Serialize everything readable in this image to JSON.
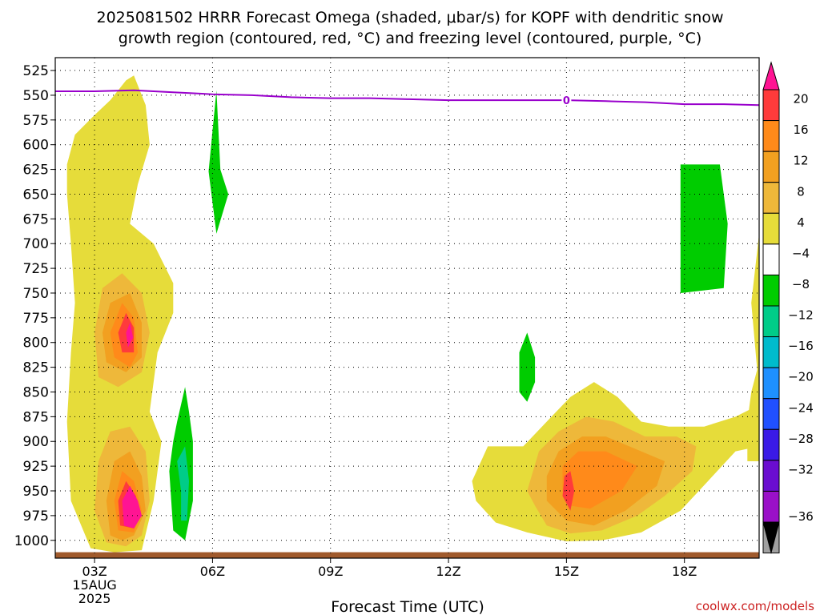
{
  "chart_data": {
    "type": "heatmap",
    "title_line1": "2025081502 HRRR Forecast Omega (shaded, μbar/s) for KOPF with dendritic snow",
    "title_line2": "growth region (contoured, red, °C) and freezing level (contoured, purple, °C)",
    "xlabel": "Forecast Time (UTC)",
    "ylabel": "",
    "watermark": "coolwx.com/models",
    "x_ticks": [
      "03Z",
      "06Z",
      "09Z",
      "12Z",
      "15Z",
      "18Z"
    ],
    "x_tick_hours": [
      3,
      6,
      9,
      12,
      15,
      18
    ],
    "x_date_line1": "15AUG",
    "x_date_line2": "2025",
    "xlim_hours": [
      2,
      19.9
    ],
    "y_ticks": [
      525,
      550,
      575,
      600,
      625,
      650,
      675,
      700,
      725,
      750,
      775,
      800,
      825,
      850,
      875,
      900,
      925,
      950,
      975,
      1000
    ],
    "ylim": [
      1018,
      512
    ],
    "grid": true,
    "colorbar": {
      "labels": [
        "20",
        "16",
        "12",
        "8",
        "4",
        "−4",
        "−8",
        "−12",
        "−16",
        "−20",
        "−24",
        "−28",
        "−32",
        "−36"
      ],
      "colors": [
        "#ff1493",
        "#ff3b3b",
        "#ff8a1a",
        "#f2a020",
        "#eeb83a",
        "#e6dc3a",
        "#ffffff",
        "#00cc00",
        "#00cc88",
        "#00bbcc",
        "#1e90ff",
        "#2050ff",
        "#3a1ae6",
        "#6a0dd0",
        "#9a10c8",
        "#a0a0a0"
      ]
    },
    "omega_colors": {
      "4": "#e6dc3a",
      "8": "#eeb83a",
      "12": "#f2a020",
      "16": "#ff8a1a",
      "20": "#ff3b3b",
      "24": "#ff1493",
      "-4": "#00cc00",
      "-8": "#00cc88"
    },
    "freezing_level": {
      "color": "#9900cc",
      "label": "0",
      "label_hour": 15,
      "hours": [
        2,
        3,
        4,
        5,
        6,
        7,
        8,
        9,
        10,
        11,
        12,
        13,
        14,
        15,
        16,
        17,
        18,
        19,
        19.9
      ],
      "pressure": [
        546,
        546,
        545,
        547,
        549,
        550,
        552,
        553,
        553,
        554,
        555,
        555,
        555,
        555,
        556,
        557,
        559,
        559,
        560
      ]
    },
    "ground": {
      "color": "#a05a2c",
      "pressure_top": 1012
    },
    "regions": [
      {
        "level": 4,
        "points": [
          [
            2.9,
            1008
          ],
          [
            2.4,
            960
          ],
          [
            2.3,
            880
          ],
          [
            2.4,
            810
          ],
          [
            2.5,
            760
          ],
          [
            2.4,
            700
          ],
          [
            2.3,
            650
          ],
          [
            2.3,
            620
          ],
          [
            2.5,
            590
          ],
          [
            3.0,
            570
          ],
          [
            3.4,
            555
          ],
          [
            3.8,
            535
          ],
          [
            4.0,
            530
          ],
          [
            4.3,
            560
          ],
          [
            4.4,
            600
          ],
          [
            4.1,
            640
          ],
          [
            3.9,
            680
          ],
          [
            4.5,
            700
          ],
          [
            5.0,
            740
          ],
          [
            5.0,
            770
          ],
          [
            4.6,
            810
          ],
          [
            4.5,
            840
          ],
          [
            4.4,
            870
          ],
          [
            4.7,
            900
          ],
          [
            4.5,
            960
          ],
          [
            4.2,
            1010
          ],
          [
            3.5,
            1012
          ]
        ]
      },
      {
        "level": 8,
        "points": [
          [
            3.1,
            835
          ],
          [
            3.0,
            790
          ],
          [
            3.2,
            745
          ],
          [
            3.7,
            730
          ],
          [
            4.2,
            750
          ],
          [
            4.4,
            790
          ],
          [
            4.2,
            830
          ],
          [
            3.6,
            845
          ]
        ]
      },
      {
        "level": 12,
        "points": [
          [
            3.3,
            820
          ],
          [
            3.2,
            790
          ],
          [
            3.4,
            760
          ],
          [
            3.9,
            750
          ],
          [
            4.2,
            780
          ],
          [
            4.2,
            815
          ],
          [
            3.8,
            830
          ]
        ]
      },
      {
        "level": 16,
        "points": [
          [
            3.5,
            815
          ],
          [
            3.4,
            790
          ],
          [
            3.7,
            760
          ],
          [
            4.0,
            775
          ],
          [
            4.1,
            810
          ],
          [
            3.9,
            825
          ]
        ]
      },
      {
        "level": 20,
        "points": [
          [
            3.7,
            810
          ],
          [
            3.6,
            790
          ],
          [
            3.8,
            770
          ],
          [
            4.0,
            785
          ],
          [
            4.0,
            810
          ]
        ]
      },
      {
        "level": 24,
        "points": [
          [
            3.85,
            805
          ],
          [
            3.8,
            790
          ],
          [
            3.9,
            780
          ],
          [
            3.98,
            795
          ]
        ]
      },
      {
        "level": 8,
        "points": [
          [
            3.3,
            1002
          ],
          [
            3.0,
            970
          ],
          [
            3.1,
            920
          ],
          [
            3.4,
            890
          ],
          [
            3.9,
            885
          ],
          [
            4.3,
            910
          ],
          [
            4.4,
            960
          ],
          [
            4.2,
            995
          ],
          [
            3.8,
            1006
          ]
        ]
      },
      {
        "level": 12,
        "points": [
          [
            3.4,
            995
          ],
          [
            3.3,
            960
          ],
          [
            3.5,
            920
          ],
          [
            3.9,
            910
          ],
          [
            4.2,
            935
          ],
          [
            4.3,
            970
          ],
          [
            4.0,
            995
          ],
          [
            3.7,
            1000
          ]
        ]
      },
      {
        "level": 16,
        "points": [
          [
            3.6,
            990
          ],
          [
            3.5,
            960
          ],
          [
            3.7,
            930
          ],
          [
            4.0,
            940
          ],
          [
            4.2,
            970
          ],
          [
            4.0,
            992
          ]
        ]
      },
      {
        "level": 20,
        "points": [
          [
            3.65,
            985
          ],
          [
            3.6,
            960
          ],
          [
            3.8,
            940
          ],
          [
            4.05,
            955
          ],
          [
            4.15,
            975
          ],
          [
            4.0,
            988
          ]
        ]
      },
      {
        "level": 24,
        "points": [
          [
            3.75,
            985
          ],
          [
            3.7,
            960
          ],
          [
            3.9,
            945
          ],
          [
            4.1,
            960
          ],
          [
            4.2,
            975
          ],
          [
            4.0,
            988
          ]
        ]
      },
      {
        "level": -4,
        "points": [
          [
            5.9,
            627
          ],
          [
            6.1,
            545
          ],
          [
            6.2,
            625
          ],
          [
            6.4,
            650
          ],
          [
            6.1,
            690
          ]
        ]
      },
      {
        "level": -4,
        "points": [
          [
            5.1,
            880
          ],
          [
            5.3,
            845
          ],
          [
            5.4,
            870
          ],
          [
            5.5,
            900
          ],
          [
            5.5,
            960
          ],
          [
            5.3,
            1000
          ],
          [
            5.0,
            990
          ],
          [
            4.9,
            930
          ],
          [
            5.0,
            900
          ]
        ]
      },
      {
        "level": -8,
        "points": [
          [
            5.2,
            950
          ],
          [
            5.1,
            920
          ],
          [
            5.3,
            905
          ],
          [
            5.4,
            940
          ],
          [
            5.35,
            980
          ],
          [
            5.2,
            980
          ]
        ]
      },
      {
        "level": -4,
        "points": [
          [
            13.8,
            850
          ],
          [
            13.8,
            810
          ],
          [
            14.0,
            790
          ],
          [
            14.2,
            815
          ],
          [
            14.2,
            840
          ],
          [
            14.0,
            860
          ]
        ]
      },
      {
        "level": -4,
        "points": [
          [
            17.9,
            655
          ],
          [
            17.9,
            620
          ],
          [
            18.9,
            620
          ],
          [
            19.1,
            680
          ],
          [
            19.0,
            745
          ],
          [
            17.9,
            750
          ]
        ]
      },
      {
        "level": 4,
        "points": [
          [
            12.7,
            960
          ],
          [
            12.6,
            940
          ],
          [
            13.0,
            905
          ],
          [
            13.9,
            905
          ],
          [
            14.5,
            880
          ],
          [
            15.1,
            855
          ],
          [
            15.7,
            840
          ],
          [
            16.3,
            855
          ],
          [
            16.9,
            880
          ],
          [
            17.6,
            885
          ],
          [
            18.5,
            885
          ],
          [
            19.3,
            875
          ],
          [
            19.8,
            865
          ],
          [
            19.9,
            850
          ],
          [
            19.7,
            760
          ],
          [
            19.9,
            690
          ],
          [
            19.9,
            905
          ],
          [
            19.3,
            910
          ],
          [
            18.6,
            940
          ],
          [
            17.9,
            970
          ],
          [
            16.9,
            992
          ],
          [
            15.9,
            1000
          ],
          [
            15.0,
            1001
          ],
          [
            14.0,
            992
          ],
          [
            13.2,
            982
          ]
        ]
      },
      {
        "level": 8,
        "points": [
          [
            14.2,
            965
          ],
          [
            14.0,
            950
          ],
          [
            14.3,
            910
          ],
          [
            14.8,
            890
          ],
          [
            15.5,
            875
          ],
          [
            16.2,
            880
          ],
          [
            17.0,
            895
          ],
          [
            17.8,
            895
          ],
          [
            18.3,
            905
          ],
          [
            18.2,
            930
          ],
          [
            17.5,
            955
          ],
          [
            16.8,
            975
          ],
          [
            15.9,
            990
          ],
          [
            15.1,
            993
          ],
          [
            14.5,
            985
          ]
        ]
      },
      {
        "level": 12,
        "points": [
          [
            14.5,
            960
          ],
          [
            14.5,
            935
          ],
          [
            14.8,
            910
          ],
          [
            15.4,
            895
          ],
          [
            16.0,
            895
          ],
          [
            16.9,
            910
          ],
          [
            17.5,
            920
          ],
          [
            17.3,
            945
          ],
          [
            16.5,
            970
          ],
          [
            15.7,
            985
          ],
          [
            15.0,
            980
          ]
        ]
      },
      {
        "level": 16,
        "points": [
          [
            14.9,
            950
          ],
          [
            14.9,
            925
          ],
          [
            15.3,
            910
          ],
          [
            16.0,
            910
          ],
          [
            16.8,
            925
          ],
          [
            16.4,
            950
          ],
          [
            15.6,
            968
          ],
          [
            15.1,
            965
          ]
        ]
      },
      {
        "level": 20,
        "points": [
          [
            14.9,
            955
          ],
          [
            14.95,
            935
          ],
          [
            15.1,
            930
          ],
          [
            15.2,
            950
          ],
          [
            15.1,
            970
          ]
        ]
      },
      {
        "level": 4,
        "points": [
          [
            19.6,
            920
          ],
          [
            19.6,
            880
          ],
          [
            19.7,
            850
          ],
          [
            19.9,
            820
          ],
          [
            19.9,
            920
          ]
        ]
      }
    ]
  }
}
